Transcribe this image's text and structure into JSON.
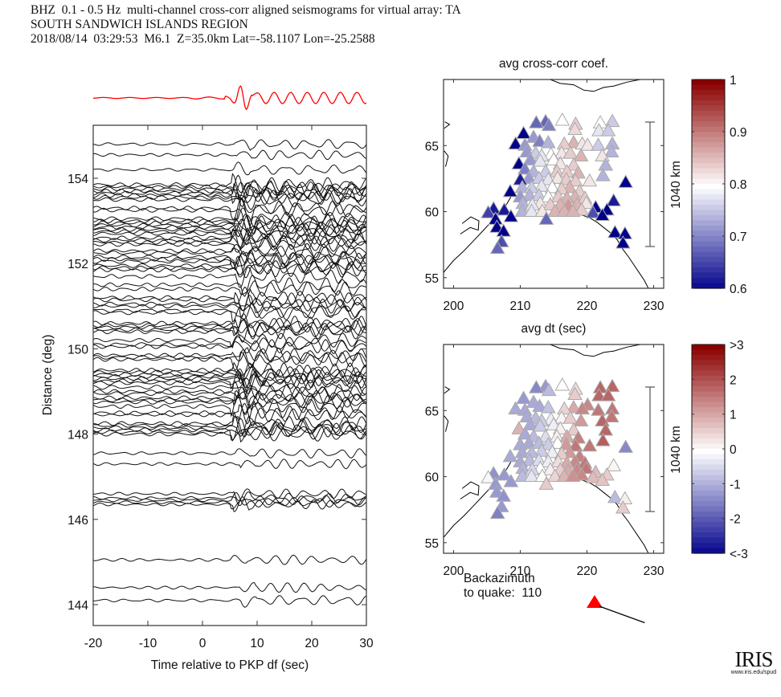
{
  "header": {
    "line1": "BHZ  0.1 - 0.5 Hz  multi-channel cross-corr aligned seismograms for virtual array: TA",
    "line2": "SOUTH SANDWICH ISLANDS REGION",
    "line3": "2018/08/14  03:29:53  M6.1  Z=35.0km Lat=-58.1107 Lon=-25.2588"
  },
  "backazimuth": {
    "label1": "Backazimuth",
    "label2": "to quake:  110",
    "value": 110
  },
  "logo": {
    "name": "IRIS",
    "url": "www.iris.edu/spud"
  },
  "chart_data": [
    {
      "type": "line",
      "name": "seismogram-record-section",
      "title": "",
      "xlabel": "Time relative to PKP df (sec)",
      "ylabel": "Distance (deg)",
      "xlim": [
        -20,
        30
      ],
      "ylim": [
        143.6,
        155.25
      ],
      "xticks": [
        -20,
        -10,
        0,
        10,
        20,
        30
      ],
      "yticks": [
        144,
        146,
        148,
        150,
        152,
        154
      ],
      "stack_trace": {
        "color": "#ff0000",
        "description": "stacked beam trace"
      },
      "trace_distances": [
        154.8,
        154.55,
        154.2,
        153.85,
        153.8,
        153.75,
        153.7,
        153.65,
        153.6,
        153.55,
        153.5,
        153.3,
        153.25,
        153.05,
        153.0,
        152.95,
        152.9,
        152.85,
        152.8,
        152.75,
        152.7,
        152.6,
        152.55,
        152.5,
        152.45,
        152.3,
        152.25,
        152.15,
        152.1,
        152.05,
        151.95,
        151.9,
        151.85,
        151.7,
        151.5,
        151.4,
        151.2,
        151.15,
        151.05,
        151.0,
        150.9,
        150.85,
        150.6,
        150.55,
        150.5,
        150.45,
        150.4,
        150.2,
        150.1,
        150.05,
        149.85,
        149.8,
        149.75,
        149.5,
        149.45,
        149.4,
        149.35,
        149.3,
        149.25,
        149.2,
        149.1,
        149.0,
        148.95,
        148.85,
        148.8,
        148.75,
        148.65,
        148.5,
        148.45,
        148.25,
        148.2,
        148.15,
        148.1,
        148.05,
        148.0,
        147.55,
        147.3,
        146.6,
        146.5,
        146.45,
        146.4,
        146.35,
        145.05,
        144.4,
        144.1
      ]
    },
    {
      "type": "scatter",
      "name": "map-avg-cross-corr-coef",
      "title": "avg cross-corr coef.",
      "xlabel": "avg dt (sec)",
      "ylabel": "",
      "xlim": [
        198.5,
        231.5
      ],
      "ylim": [
        54.2,
        70.0
      ],
      "xticks": [
        200,
        210,
        220,
        230
      ],
      "yticks": [
        55,
        60,
        65
      ],
      "scale_bar": "1040 km",
      "colorbar": {
        "min": 0.6,
        "max": 1.0,
        "ticks": [
          "1",
          "0.9",
          "0.8",
          "0.7",
          "0.6"
        ],
        "colormap": "blue-white-red"
      },
      "stations": [
        [
          210.5,
          65.9,
          0.6
        ],
        [
          209.3,
          65.1,
          0.6
        ],
        [
          209.8,
          63.6,
          0.6
        ],
        [
          210.0,
          62.4,
          0.62
        ],
        [
          208.5,
          61.5,
          0.6
        ],
        [
          206.0,
          60.2,
          0.62
        ],
        [
          205.2,
          59.9,
          0.65
        ],
        [
          207.6,
          60.1,
          0.62
        ],
        [
          208.6,
          59.6,
          0.6
        ],
        [
          206.3,
          59.4,
          0.6
        ],
        [
          206.5,
          58.8,
          0.6
        ],
        [
          207.5,
          58.5,
          0.6
        ],
        [
          207.2,
          57.7,
          0.66
        ],
        [
          206.6,
          57.2,
          0.68
        ],
        [
          212.4,
          66.7,
          0.68
        ],
        [
          213.8,
          66.8,
          0.68
        ],
        [
          214.3,
          66.5,
          0.7
        ],
        [
          216.3,
          66.9,
          0.8
        ],
        [
          218.3,
          66.6,
          0.84
        ],
        [
          218.2,
          66.2,
          0.83
        ],
        [
          222.0,
          66.7,
          0.8
        ],
        [
          223.8,
          66.8,
          0.76
        ],
        [
          221.8,
          66.1,
          0.78
        ],
        [
          223.2,
          66.1,
          0.76
        ],
        [
          210.7,
          65.0,
          0.72
        ],
        [
          212.0,
          65.6,
          0.72
        ],
        [
          212.9,
          65.3,
          0.7
        ],
        [
          214.2,
          65.2,
          0.74
        ],
        [
          216.6,
          65.1,
          0.84
        ],
        [
          218.0,
          65.2,
          0.86
        ],
        [
          219.3,
          65.1,
          0.82
        ],
        [
          220.1,
          65.0,
          0.82
        ],
        [
          221.7,
          65.0,
          0.76
        ],
        [
          223.8,
          65.1,
          0.74
        ],
        [
          211.0,
          64.5,
          0.72
        ],
        [
          212.3,
          64.4,
          0.76
        ],
        [
          213.2,
          64.2,
          0.78
        ],
        [
          214.6,
          64.3,
          0.8
        ],
        [
          216.2,
          64.4,
          0.82
        ],
        [
          217.5,
          64.4,
          0.84
        ],
        [
          219.1,
          64.2,
          0.86
        ],
        [
          222.3,
          64.2,
          0.82
        ],
        [
          223.7,
          64.5,
          0.74
        ],
        [
          211.5,
          63.9,
          0.72
        ],
        [
          213.0,
          63.8,
          0.78
        ],
        [
          215.0,
          63.9,
          0.8
        ],
        [
          216.0,
          63.6,
          0.82
        ],
        [
          218.0,
          63.5,
          0.84
        ],
        [
          222.8,
          63.5,
          0.74
        ],
        [
          210.7,
          63.2,
          0.7
        ],
        [
          212.0,
          63.0,
          0.74
        ],
        [
          213.8,
          63.0,
          0.76
        ],
        [
          215.5,
          63.0,
          0.84
        ],
        [
          217.0,
          63.0,
          0.84
        ],
        [
          218.7,
          62.9,
          0.86
        ],
        [
          222.4,
          62.7,
          0.74
        ],
        [
          211.3,
          62.5,
          0.72
        ],
        [
          212.8,
          62.5,
          0.76
        ],
        [
          214.2,
          62.4,
          0.78
        ],
        [
          215.6,
          62.5,
          0.82
        ],
        [
          216.9,
          62.4,
          0.84
        ],
        [
          218.3,
          62.3,
          0.84
        ],
        [
          220.4,
          62.3,
          0.82
        ],
        [
          225.8,
          62.2,
          0.6
        ],
        [
          210.3,
          61.8,
          0.74
        ],
        [
          211.7,
          61.8,
          0.76
        ],
        [
          213.2,
          61.9,
          0.78
        ],
        [
          214.8,
          61.8,
          0.8
        ],
        [
          216.2,
          61.7,
          0.84
        ],
        [
          217.4,
          61.8,
          0.86
        ],
        [
          218.9,
          61.5,
          0.84
        ],
        [
          210.0,
          61.1,
          0.72
        ],
        [
          211.4,
          61.2,
          0.74
        ],
        [
          212.8,
          61.2,
          0.76
        ],
        [
          214.2,
          61.1,
          0.8
        ],
        [
          215.7,
          61.1,
          0.84
        ],
        [
          217.0,
          61.0,
          0.86
        ],
        [
          218.2,
          61.1,
          0.86
        ],
        [
          219.7,
          61.0,
          0.84
        ],
        [
          210.4,
          60.6,
          0.74
        ],
        [
          211.8,
          60.5,
          0.78
        ],
        [
          213.0,
          60.6,
          0.82
        ],
        [
          214.5,
          60.5,
          0.84
        ],
        [
          216.0,
          60.5,
          0.86
        ],
        [
          217.2,
          60.4,
          0.88
        ],
        [
          218.5,
          60.5,
          0.86
        ],
        [
          219.9,
          60.6,
          0.82
        ],
        [
          224.0,
          60.8,
          0.62
        ],
        [
          210.3,
          60.0,
          0.74
        ],
        [
          211.7,
          60.0,
          0.78
        ],
        [
          213.3,
          60.0,
          0.82
        ],
        [
          215.2,
          60.0,
          0.86
        ],
        [
          216.6,
          60.0,
          0.86
        ],
        [
          217.9,
          60.0,
          0.86
        ],
        [
          219.2,
          60.1,
          0.84
        ],
        [
          221.3,
          60.3,
          0.6
        ],
        [
          223.0,
          60.1,
          0.6
        ],
        [
          213.9,
          59.4,
          0.68
        ],
        [
          220.9,
          59.9,
          0.66
        ],
        [
          222.3,
          59.7,
          0.6
        ],
        [
          224.2,
          58.4,
          0.6
        ],
        [
          225.7,
          58.3,
          0.6
        ],
        [
          225.4,
          57.6,
          0.6
        ]
      ]
    },
    {
      "type": "scatter",
      "name": "map-avg-dt",
      "title": "",
      "xlabel": "",
      "ylabel": "",
      "xlim": [
        198.5,
        231.5
      ],
      "ylim": [
        54.2,
        70.0
      ],
      "xticks": [
        200,
        210,
        220,
        230
      ],
      "yticks": [
        55,
        60,
        65
      ],
      "scale_bar": "1040 km",
      "colorbar": {
        "min": -3,
        "max": 3,
        "ticks": [
          ">3",
          "2",
          "1",
          "0",
          "-1",
          "-2",
          "<-3"
        ],
        "colormap": "blue-white-red"
      },
      "stations": [
        [
          210.5,
          65.9,
          -1.2
        ],
        [
          209.3,
          65.1,
          -1.0
        ],
        [
          209.8,
          63.6,
          0.9
        ],
        [
          210.0,
          62.4,
          -1.0
        ],
        [
          208.5,
          61.5,
          -1.0
        ],
        [
          206.0,
          60.2,
          -1.3
        ],
        [
          205.2,
          59.9,
          -0.1
        ],
        [
          207.6,
          60.1,
          -1.2
        ],
        [
          208.6,
          59.6,
          -1.2
        ],
        [
          206.3,
          59.4,
          -1.2
        ],
        [
          206.5,
          58.8,
          -1.2
        ],
        [
          207.5,
          58.5,
          -1.3
        ],
        [
          207.2,
          57.7,
          -1.2
        ],
        [
          206.6,
          57.2,
          -1.5
        ],
        [
          212.4,
          66.7,
          -1.4
        ],
        [
          213.8,
          66.8,
          -1.2
        ],
        [
          214.3,
          66.5,
          -0.8
        ],
        [
          216.3,
          66.9,
          0.0
        ],
        [
          218.3,
          66.6,
          0.4
        ],
        [
          218.2,
          66.2,
          0.6
        ],
        [
          222.0,
          66.7,
          1.8
        ],
        [
          223.8,
          66.8,
          1.8
        ],
        [
          221.8,
          66.1,
          1.8
        ],
        [
          223.2,
          66.1,
          1.8
        ],
        [
          210.7,
          65.0,
          -1.0
        ],
        [
          212.0,
          65.6,
          -1.0
        ],
        [
          212.9,
          65.3,
          -1.0
        ],
        [
          214.2,
          65.2,
          -0.7
        ],
        [
          216.6,
          65.1,
          0.5
        ],
        [
          218.0,
          65.2,
          1.0
        ],
        [
          219.3,
          65.1,
          1.4
        ],
        [
          220.1,
          65.4,
          1.4
        ],
        [
          221.7,
          65.0,
          1.6
        ],
        [
          223.8,
          65.1,
          1.6
        ],
        [
          211.0,
          64.5,
          -1.0
        ],
        [
          212.3,
          64.4,
          -0.8
        ],
        [
          213.2,
          64.2,
          -0.6
        ],
        [
          214.6,
          64.3,
          -0.2
        ],
        [
          216.2,
          64.4,
          0.1
        ],
        [
          217.5,
          64.4,
          0.6
        ],
        [
          219.1,
          64.2,
          1.2
        ],
        [
          222.3,
          64.2,
          1.8
        ],
        [
          223.7,
          64.5,
          1.6
        ],
        [
          211.5,
          63.9,
          -1.0
        ],
        [
          213.0,
          63.8,
          -0.6
        ],
        [
          215.0,
          63.9,
          -0.2
        ],
        [
          216.0,
          63.6,
          0.2
        ],
        [
          218.0,
          63.5,
          0.6
        ],
        [
          222.8,
          63.5,
          1.8
        ],
        [
          210.7,
          63.2,
          -1.0
        ],
        [
          212.0,
          63.0,
          -0.8
        ],
        [
          213.8,
          63.0,
          -0.4
        ],
        [
          215.5,
          63.0,
          0.2
        ],
        [
          217.0,
          63.0,
          1.0
        ],
        [
          218.7,
          62.9,
          1.5
        ],
        [
          222.4,
          62.7,
          1.9
        ],
        [
          211.3,
          62.5,
          -1.0
        ],
        [
          212.8,
          62.5,
          -0.8
        ],
        [
          214.2,
          62.4,
          -0.6
        ],
        [
          215.6,
          62.5,
          0.0
        ],
        [
          216.9,
          62.4,
          1.2
        ],
        [
          218.3,
          62.3,
          1.6
        ],
        [
          220.4,
          62.3,
          1.6
        ],
        [
          225.8,
          62.2,
          -1.4
        ],
        [
          210.3,
          61.8,
          -1.0
        ],
        [
          211.7,
          61.8,
          -0.8
        ],
        [
          213.2,
          61.9,
          -0.6
        ],
        [
          214.8,
          61.8,
          -0.2
        ],
        [
          216.2,
          61.7,
          0.6
        ],
        [
          217.4,
          61.8,
          1.2
        ],
        [
          218.9,
          61.5,
          1.5
        ],
        [
          210.0,
          61.1,
          -1.0
        ],
        [
          211.4,
          61.2,
          -0.8
        ],
        [
          212.8,
          61.2,
          -0.4
        ],
        [
          214.2,
          61.1,
          -0.2
        ],
        [
          215.7,
          61.1,
          0.4
        ],
        [
          217.0,
          61.0,
          1.0
        ],
        [
          218.2,
          61.1,
          1.4
        ],
        [
          219.7,
          61.0,
          1.6
        ],
        [
          210.4,
          60.6,
          -0.9
        ],
        [
          211.8,
          60.5,
          -0.5
        ],
        [
          213.0,
          60.6,
          0.0
        ],
        [
          214.5,
          60.5,
          0.2
        ],
        [
          216.0,
          60.5,
          0.6
        ],
        [
          217.2,
          60.4,
          1.0
        ],
        [
          218.5,
          60.5,
          1.4
        ],
        [
          219.9,
          60.6,
          1.6
        ],
        [
          224.0,
          60.8,
          0.1
        ],
        [
          210.3,
          60.0,
          -0.8
        ],
        [
          211.7,
          60.0,
          -0.3
        ],
        [
          213.3,
          60.0,
          0.0
        ],
        [
          215.2,
          60.0,
          0.5
        ],
        [
          216.6,
          60.0,
          0.9
        ],
        [
          217.9,
          60.0,
          1.3
        ],
        [
          219.2,
          60.1,
          1.4
        ],
        [
          221.3,
          60.3,
          0.8
        ],
        [
          223.0,
          60.1,
          0.6
        ],
        [
          213.9,
          59.4,
          0.6
        ],
        [
          220.9,
          59.9,
          0.8
        ],
        [
          222.3,
          59.7,
          0.7
        ],
        [
          224.2,
          58.4,
          -0.8
        ],
        [
          225.7,
          58.3,
          0.2
        ],
        [
          225.4,
          57.6,
          0.6
        ]
      ]
    }
  ],
  "labels": {
    "xlabel_left": "Time relative to PKP df (sec)",
    "ylabel_left": "Distance (deg)",
    "map1_title": "avg cross-corr coef.",
    "map1_xlabel": "avg dt (sec)",
    "scale_bar": "1040 km"
  }
}
